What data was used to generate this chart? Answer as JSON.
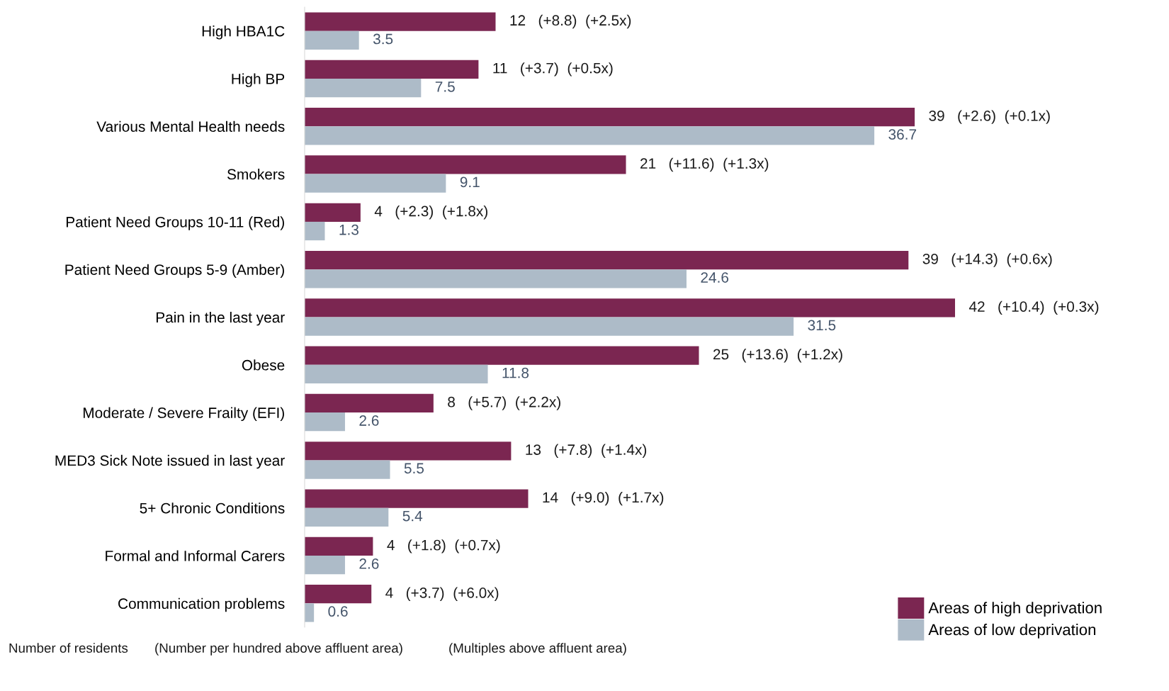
{
  "chart_data": {
    "type": "bar",
    "orientation": "horizontal",
    "categories": [
      "High HBA1C",
      "High BP",
      "Various Mental Health needs",
      "Smokers",
      "Patient Need Groups 10-11 (Red)",
      "Patient Need Groups 5-9 (Amber)",
      "Pain in the last year",
      "Obese",
      "Moderate / Severe Frailty (EFI)",
      "MED3 Sick Note issued in last year",
      "5+ Chronic Conditions",
      "Formal and Informal Carers",
      "Communication problems"
    ],
    "series": [
      {
        "name": "Areas of high deprivation",
        "color": "#7b2651",
        "values": [
          12.3,
          11.2,
          39.3,
          20.7,
          3.6,
          38.9,
          41.9,
          25.4,
          8.3,
          13.3,
          14.4,
          4.4,
          4.3
        ],
        "value_labels": [
          "12   (+8.8)  (+2.5x)",
          "11   (+3.7)  (+0.5x)",
          "39   (+2.6)  (+0.1x)",
          "21   (+11.6)  (+1.3x)",
          "4   (+2.3)  (+1.8x)",
          "39   (+14.3)  (+0.6x)",
          "42   (+10.4)  (+0.3x)",
          "25   (+13.6)  (+1.2x)",
          "8   (+5.7)  (+2.2x)",
          "13   (+7.8)  (+1.4x)",
          "14   (+9.0)  (+1.7x)",
          "4   (+1.8)  (+0.7x)",
          "4   (+3.7)  (+6.0x)"
        ]
      },
      {
        "name": "Areas of low deprivation",
        "color": "#adbbc8",
        "values": [
          3.5,
          7.5,
          36.7,
          9.1,
          1.3,
          24.6,
          31.5,
          11.8,
          2.6,
          5.5,
          5.4,
          2.6,
          0.6
        ],
        "data_labels": true
      }
    ],
    "legend": "bottom right",
    "grid": false,
    "annotations": [
      "Number of residents",
      "(Number per hundred above affluent area)",
      "(Multiples above affluent area)"
    ]
  }
}
